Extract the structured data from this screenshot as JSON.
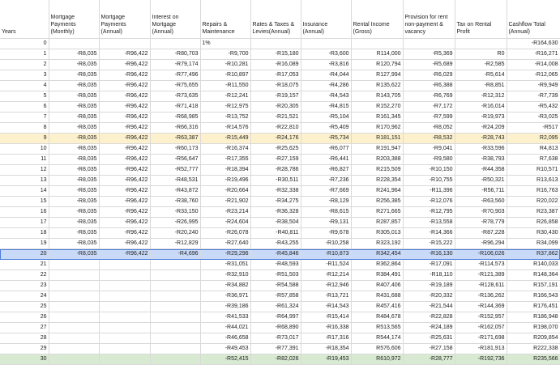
{
  "headers": [
    "Years",
    "Mortgage Payments (Monthly)",
    "Mortgage Payments (Annual)",
    "Interest on Mortgage (Annual)",
    "Repairs & Maintenance",
    "Rates & Taxes & Levies(Annual)",
    "Insurance (Annual)",
    "Rental Income (Gross)",
    "Provision for rent non-payment & vacancy",
    "Tax on Rental Profit",
    "Cashflow Total (Annual)"
  ],
  "rows": [
    [
      "0",
      "",
      "",
      "",
      "1%",
      "",
      "",
      "",
      "",
      "",
      "-R164,630"
    ],
    [
      "1",
      "-R8,035",
      "-R96,422",
      "-R80,703",
      "-R9,700",
      "-R15,180",
      "-R3,600",
      "R114,000",
      "-R5,369",
      "R0",
      "-R16,271"
    ],
    [
      "2",
      "-R8,035",
      "-R96,422",
      "-R79,174",
      "-R10,281",
      "-R16,089",
      "-R3,816",
      "R120,794",
      "-R5,689",
      "-R2,585",
      "-R14,008"
    ],
    [
      "3",
      "-R8,035",
      "-R96,422",
      "-R77,496",
      "-R10,897",
      "-R17,053",
      "-R4,044",
      "R127,994",
      "-R6,029",
      "-R5,614",
      "-R12,065"
    ],
    [
      "4",
      "-R8,035",
      "-R96,422",
      "-R75,655",
      "-R11,550",
      "-R18,075",
      "-R4,286",
      "R135,622",
      "-R6,388",
      "-R8,851",
      "-R9,949"
    ],
    [
      "5",
      "-R8,035",
      "-R96,422",
      "-R73,635",
      "-R12,241",
      "-R19,157",
      "-R4,543",
      "R143,705",
      "-R6,769",
      "-R12,312",
      "-R7,739"
    ],
    [
      "6",
      "-R8,035",
      "-R96,422",
      "-R71,418",
      "-R12,975",
      "-R20,305",
      "-R4,815",
      "R152,270",
      "-R7,172",
      "-R16,014",
      "-R5,432"
    ],
    [
      "7",
      "-R8,035",
      "-R96,422",
      "-R68,985",
      "-R13,752",
      "-R21,521",
      "-R5,104",
      "R161,345",
      "-R7,599",
      "-R19,973",
      "-R3,025"
    ],
    [
      "8",
      "-R8,035",
      "-R96,422",
      "-R66,316",
      "-R14,576",
      "-R22,810",
      "-R5,409",
      "R170,962",
      "-R8,052",
      "-R24,209",
      "-R517"
    ],
    [
      "9",
      "-R8,035",
      "-R96,422",
      "-R63,387",
      "-R15,449",
      "-R24,176",
      "-R5,734",
      "R181,151",
      "-R8,532",
      "-R28,743",
      "R2,095"
    ],
    [
      "10",
      "-R8,035",
      "-R96,422",
      "-R60,173",
      "-R16,374",
      "-R25,625",
      "-R6,077",
      "R191,947",
      "-R9,041",
      "-R33,596",
      "R4,813"
    ],
    [
      "11",
      "-R8,035",
      "-R96,422",
      "-R56,647",
      "-R17,355",
      "-R27,159",
      "-R6,441",
      "R203,388",
      "-R9,580",
      "-R38,793",
      "R7,638"
    ],
    [
      "12",
      "-R8,035",
      "-R96,422",
      "-R52,777",
      "-R18,394",
      "-R28,786",
      "-R6,827",
      "R215,509",
      "-R10,150",
      "-R44,358",
      "R10,571"
    ],
    [
      "13",
      "-R8,035",
      "-R96,422",
      "-R48,531",
      "-R19,496",
      "-R30,511",
      "-R7,236",
      "R228,354",
      "-R10,755",
      "-R50,321",
      "R13,613"
    ],
    [
      "14",
      "-R8,035",
      "-R96,422",
      "-R43,872",
      "-R20,664",
      "-R32,338",
      "-R7,669",
      "R241,964",
      "-R11,396",
      "-R56,711",
      "R16,763"
    ],
    [
      "15",
      "-R8,035",
      "-R96,422",
      "-R38,760",
      "-R21,902",
      "-R34,275",
      "-R8,129",
      "R256,385",
      "-R12,076",
      "-R63,560",
      "R20,022"
    ],
    [
      "16",
      "-R8,035",
      "-R96,422",
      "-R33,150",
      "-R23,214",
      "-R36,328",
      "-R8,615",
      "R271,665",
      "-R12,795",
      "-R70,903",
      "R23,387"
    ],
    [
      "17",
      "-R8,035",
      "-R96,422",
      "-R26,995",
      "-R24,604",
      "-R38,504",
      "-R9,131",
      "R287,857",
      "-R13,558",
      "-R78,779",
      "R26,858"
    ],
    [
      "18",
      "-R8,035",
      "-R96,422",
      "-R20,240",
      "-R26,078",
      "-R40,811",
      "-R9,678",
      "R305,013",
      "-R14,366",
      "-R87,228",
      "R30,430"
    ],
    [
      "19",
      "-R8,035",
      "-R96,422",
      "-R12,829",
      "-R27,640",
      "-R43,255",
      "-R10,258",
      "R323,192",
      "-R15,222",
      "-R96,294",
      "R34,099"
    ],
    [
      "20",
      "-R8,035",
      "-R96,422",
      "-R4,696",
      "-R29,296",
      "-R45,846",
      "-R10,873",
      "R342,454",
      "-R16,130",
      "-R106,026",
      "R37,862"
    ],
    [
      "21",
      "",
      "",
      "",
      "-R31,051",
      "-R48,593",
      "-R11,524",
      "R362,864",
      "-R17,091",
      "-R114,573",
      "R140,033"
    ],
    [
      "22",
      "",
      "",
      "",
      "-R32,910",
      "-R51,503",
      "-R12,214",
      "R384,491",
      "-R18,110",
      "-R121,389",
      "R148,364"
    ],
    [
      "23",
      "",
      "",
      "",
      "-R34,882",
      "-R54,588",
      "-R12,946",
      "R407,406",
      "-R19,189",
      "-R128,611",
      "R157,191"
    ],
    [
      "24",
      "",
      "",
      "",
      "-R36,971",
      "-R57,858",
      "-R13,721",
      "R431,688",
      "-R20,332",
      "-R136,262",
      "R166,543"
    ],
    [
      "25",
      "",
      "",
      "",
      "-R39,186",
      "-R61,324",
      "-R14,543",
      "R457,416",
      "-R21,544",
      "-R144,369",
      "R176,451"
    ],
    [
      "26",
      "",
      "",
      "",
      "-R41,533",
      "-R64,997",
      "-R15,414",
      "R484,678",
      "-R22,828",
      "-R152,957",
      "R186,948"
    ],
    [
      "27",
      "",
      "",
      "",
      "-R44,021",
      "-R68,890",
      "-R16,338",
      "R513,565",
      "-R24,189",
      "-R162,057",
      "R198,070"
    ],
    [
      "28",
      "",
      "",
      "",
      "-R46,658",
      "-R73,017",
      "-R17,316",
      "R544,174",
      "-R25,631",
      "-R171,698",
      "R209,854"
    ],
    [
      "29",
      "",
      "",
      "",
      "-R49,453",
      "-R77,391",
      "-R18,354",
      "R576,606",
      "-R27,158",
      "-R181,913",
      "R222,338"
    ],
    [
      "30",
      "",
      "",
      "",
      "-R52,415",
      "-R82,026",
      "-R19,453",
      "R610,972",
      "-R28,777",
      "-R192,736",
      "R235,566"
    ]
  ],
  "highlights": {
    "yellow_row": "9",
    "blue_row": "20",
    "green_row": "30"
  }
}
